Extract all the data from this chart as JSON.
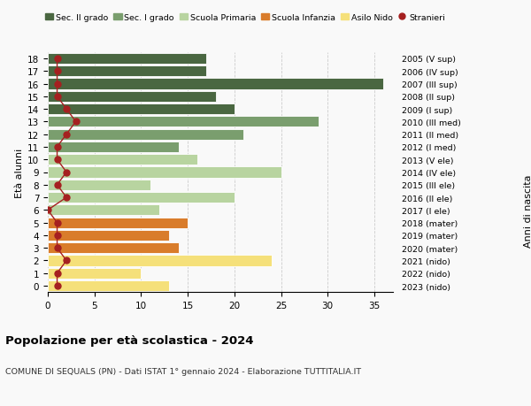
{
  "ages": [
    18,
    17,
    16,
    15,
    14,
    13,
    12,
    11,
    10,
    9,
    8,
    7,
    6,
    5,
    4,
    3,
    2,
    1,
    0
  ],
  "years": [
    "2005 (V sup)",
    "2006 (IV sup)",
    "2007 (III sup)",
    "2008 (II sup)",
    "2009 (I sup)",
    "2010 (III med)",
    "2011 (II med)",
    "2012 (I med)",
    "2013 (V ele)",
    "2014 (IV ele)",
    "2015 (III ele)",
    "2016 (II ele)",
    "2017 (I ele)",
    "2018 (mater)",
    "2019 (mater)",
    "2020 (mater)",
    "2021 (nido)",
    "2022 (nido)",
    "2023 (nido)"
  ],
  "bar_values": [
    17,
    17,
    36,
    18,
    20,
    29,
    21,
    14,
    16,
    25,
    11,
    20,
    12,
    15,
    13,
    14,
    24,
    10,
    13
  ],
  "bar_colors": [
    "#4a6741",
    "#4a6741",
    "#4a6741",
    "#4a6741",
    "#4a6741",
    "#7a9e6e",
    "#7a9e6e",
    "#7a9e6e",
    "#b8d4a0",
    "#b8d4a0",
    "#b8d4a0",
    "#b8d4a0",
    "#b8d4a0",
    "#d97c2b",
    "#d97c2b",
    "#d97c2b",
    "#f5e07a",
    "#f5e07a",
    "#f5e07a"
  ],
  "stranieri_values": [
    1,
    1,
    1,
    1,
    2,
    3,
    2,
    1,
    1,
    2,
    1,
    2,
    0,
    1,
    1,
    1,
    2,
    1,
    1
  ],
  "legend_labels": [
    "Sec. II grado",
    "Sec. I grado",
    "Scuola Primaria",
    "Scuola Infanzia",
    "Asilo Nido",
    "Stranieri"
  ],
  "legend_colors": [
    "#4a6741",
    "#7a9e6e",
    "#b8d4a0",
    "#d97c2b",
    "#f5e07a",
    "#a52020"
  ],
  "ylabel_left": "Età alunni",
  "ylabel_right": "Anni di nascita",
  "title": "Popolazione per età scolastica - 2024",
  "subtitle": "COMUNE DI SEQUALS (PN) - Dati ISTAT 1° gennaio 2024 - Elaborazione TUTTITALIA.IT",
  "xlim": [
    0,
    37
  ],
  "background_color": "#f9f9f9",
  "bar_edge_color": "white",
  "grid_color": "#cccccc",
  "stranieri_color": "#a52020",
  "stranieri_markersize": 5,
  "stranieri_linewidth": 1.0
}
